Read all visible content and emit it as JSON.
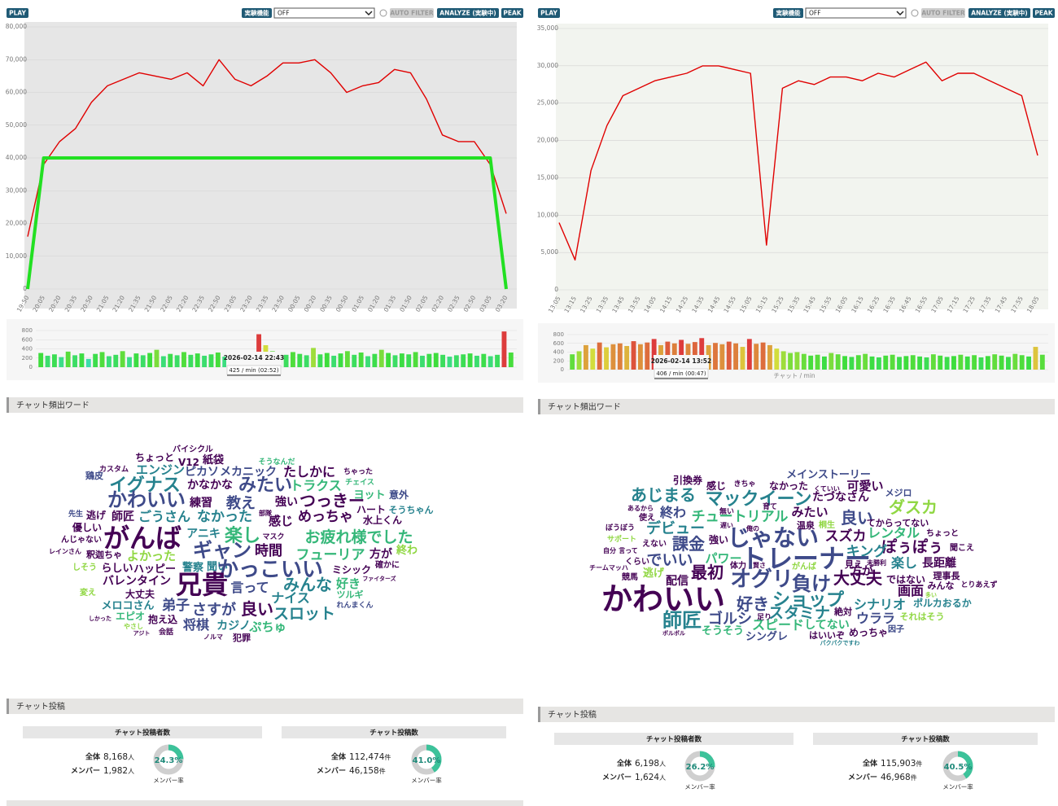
{
  "panels": [
    {
      "controls": {
        "play": "PLAY",
        "feature": "実験機能",
        "select": "OFF",
        "auto_filter": "AUTO FILTER",
        "analyze": "ANALYZE (実験中)",
        "peak": "PEAK"
      },
      "main_chart": {
        "type": "line",
        "categories": [
          "19:50",
          "20:05",
          "20:20",
          "20:35",
          "20:50",
          "21:05",
          "21:20",
          "21:35",
          "21:50",
          "22:05",
          "22:20",
          "22:35",
          "22:50",
          "23:05",
          "23:20",
          "23:35",
          "23:50",
          "00:05",
          "00:20",
          "00:35",
          "00:50",
          "01:05",
          "01:20",
          "01:35",
          "01:50",
          "02:05",
          "02:20",
          "02:35",
          "02:50",
          "03:05",
          "03:20"
        ],
        "series": [
          {
            "color": "#e00000",
            "values": [
              16000,
              38000,
              45000,
              49000,
              57000,
              62000,
              64000,
              66000,
              65000,
              64000,
              66000,
              62000,
              70000,
              64000,
              62000,
              65000,
              69000,
              69000,
              70000,
              66000,
              60000,
              62000,
              63000,
              67000,
              66000,
              58000,
              47000,
              45000,
              45000,
              38000,
              23000
            ]
          },
          {
            "color": "#22e022",
            "values": [
              0,
              40000,
              40000,
              40000,
              40000,
              40000,
              40000,
              40000,
              40000,
              40000,
              40000,
              40000,
              40000,
              40000,
              40000,
              40000,
              40000,
              40000,
              40000,
              40000,
              40000,
              40000,
              40000,
              40000,
              40000,
              40000,
              40000,
              40000,
              40000,
              40000,
              0
            ]
          }
        ],
        "ylim": [
          0,
          80000
        ],
        "yticks": [
          0,
          {
            "value": 10000,
            "label": "10,000"
          },
          {
            "value": 20000,
            "label": "20,000"
          },
          {
            "value": 30000,
            "label": "30,000"
          },
          {
            "value": 40000,
            "label": "40,000"
          },
          {
            "value": 50000,
            "label": "50,000"
          },
          {
            "value": 60000,
            "label": "60,000"
          },
          {
            "value": 70000,
            "label": "70,000"
          },
          {
            "value": 80000,
            "label": "80,000"
          }
        ],
        "grid": true
      },
      "bar_chart": {
        "type": "bar",
        "values": [
          310,
          250,
          280,
          220,
          340,
          260,
          300,
          180,
          290,
          330,
          240,
          270,
          350,
          220,
          300,
          260,
          310,
          380,
          240,
          290,
          260,
          330,
          270,
          300,
          250,
          280,
          320,
          230,
          290,
          260,
          310,
          280,
          720,
          480,
          350,
          300,
          270,
          330,
          290,
          260,
          420,
          280,
          310,
          250,
          300,
          350,
          270,
          320,
          240,
          290,
          380,
          310,
          260,
          300,
          280,
          330,
          250,
          290,
          310,
          270,
          230,
          260,
          280,
          300,
          250,
          290,
          240,
          270,
          780,
          320
        ],
        "ylim": [
          0,
          800
        ],
        "yticks": [
          0,
          200,
          400,
          600,
          800
        ],
        "x_label": "チャット / min",
        "tooltip": {
          "time": "2026-02-14 22:43",
          "rate": "425 / min (02:52)"
        }
      },
      "word_cloud": {
        "title": "チャット頻出ワード",
        "words": [
          "バイシクル",
          "ちょっと",
          "V12",
          "紙袋",
          "カスタム",
          "エンジン",
          "ピカソ",
          "メカニック",
          "そうなんだ",
          "ちゃった",
          "イグナス",
          "かなかな",
          "みたい",
          "たしかに",
          "トラクス",
          "チェイス",
          "鶏皮",
          "かわいい",
          "ヨット",
          "意外",
          "練習",
          "教え",
          "強い",
          "つっきー",
          "先生",
          "逃げ",
          "師匠",
          "ごうさん",
          "なかった",
          "ハート",
          "そうちゃん",
          "部隊",
          "感じ",
          "めっちゃ",
          "水上くん",
          "優しい",
          "アニキ",
          "がんば",
          "楽し",
          "マスク",
          "お疲れ様でした",
          "んじゃない",
          "レインさん",
          "ギャン",
          "時間",
          "よかった",
          "フューリア",
          "方が",
          "終わ",
          "釈迦ちゃ",
          "らしい",
          "ハッピー",
          "聞い",
          "かっこいい",
          "ミシック",
          "確かに",
          "しそう",
          "警察",
          "バレンタイン",
          "兄貴",
          "言って",
          "みんな",
          "好き",
          "ファイターズ",
          "変え",
          "大丈夫",
          "ナイス",
          "ツルギ",
          "メロコさん",
          "弟子",
          "さすが",
          "良い",
          "スロット",
          "れんまくん",
          "エピオ",
          "抱え込",
          "将棋",
          "カジノ",
          "ぷちゅ",
          "しかった",
          "やさし",
          "会話",
          "アジト",
          "ノルマ",
          "犯罪"
        ]
      },
      "posts": {
        "title": "チャット投稿",
        "boxes": [
          {
            "title": "チャット投稿者数",
            "total_label": "全体",
            "total": "8,168",
            "total_unit": "人",
            "member_label": "メンバー",
            "member": "1,982",
            "member_unit": "人",
            "rate": {
              "value": 24.3,
              "label": "24.3%"
            },
            "rate_caption": "メンバー率"
          },
          {
            "title": "チャット投稿数",
            "total_label": "全体",
            "total": "112,474",
            "total_unit": "件",
            "member_label": "メンバー",
            "member": "46,158",
            "member_unit": "件",
            "rate": {
              "value": 41.0,
              "label": "41.0%"
            },
            "rate_caption": "メンバー率"
          }
        ]
      }
    },
    {
      "controls": {
        "play": "PLAY",
        "feature": "実験機能",
        "select": "OFF",
        "auto_filter": "AUTO FILTER",
        "analyze": "ANALYZE (実験中)",
        "peak": "PEAK"
      },
      "main_chart": {
        "type": "line",
        "categories": [
          "13:05",
          "13:15",
          "13:25",
          "13:35",
          "13:45",
          "13:55",
          "14:05",
          "14:15",
          "14:25",
          "14:35",
          "14:45",
          "14:55",
          "15:05",
          "15:15",
          "15:25",
          "15:35",
          "15:45",
          "15:55",
          "16:05",
          "16:15",
          "16:25",
          "16:35",
          "16:45",
          "16:55",
          "17:05",
          "17:15",
          "17:25",
          "17:35",
          "17:45",
          "17:55",
          "18:05"
        ],
        "series": [
          {
            "color": "#e00000",
            "values": [
              9000,
              4000,
              16000,
              22000,
              26000,
              27000,
              28000,
              28500,
              29000,
              30000,
              30000,
              29500,
              29000,
              6000,
              27000,
              28000,
              27500,
              28500,
              28500,
              28000,
              29000,
              28500,
              29500,
              30500,
              28000,
              29000,
              29000,
              28000,
              27000,
              26000,
              18000
            ]
          }
        ],
        "ylim": [
          0,
          35000
        ],
        "yticks": [
          0,
          {
            "value": 5000,
            "label": "5,000"
          },
          {
            "value": 10000,
            "label": "10,000"
          },
          {
            "value": 15000,
            "label": "15,000"
          },
          {
            "value": 20000,
            "label": "20,000"
          },
          {
            "value": 25000,
            "label": "25,000"
          },
          {
            "value": 30000,
            "label": "30,000"
          },
          {
            "value": 35000,
            "label": "35,000"
          }
        ],
        "grid": true
      },
      "bar_chart": {
        "type": "bar",
        "values": [
          350,
          420,
          560,
          480,
          620,
          510,
          580,
          600,
          540,
          650,
          580,
          620,
          700,
          560,
          640,
          600,
          680,
          590,
          630,
          720,
          560,
          610,
          580,
          640,
          600,
          520,
          700,
          590,
          620,
          560,
          480,
          420,
          380,
          400,
          360,
          320,
          340,
          300,
          380,
          350,
          310,
          290,
          330,
          360,
          300,
          280,
          320,
          340,
          290,
          310,
          330,
          300,
          280,
          350,
          320,
          290,
          310,
          340,
          300,
          330,
          280,
          310,
          350,
          320,
          290,
          360,
          330,
          300,
          520,
          340
        ],
        "ylim": [
          0,
          800
        ],
        "yticks": [
          0,
          200,
          400,
          600,
          800
        ],
        "x_label": "チャット / min",
        "tooltip": {
          "time": "2026-02-14 13:52",
          "rate": "406 / min (00:47)"
        }
      },
      "word_cloud": {
        "title": "チャット頻出ワード",
        "words": [
          "メインストーリー",
          "引換券",
          "感じ",
          "きちゃ",
          "なかった",
          "くていい",
          "可愛い",
          "たづなさん",
          "メジロ",
          "あじまる",
          "マックイーン",
          "ダスカ",
          "育て",
          "無い",
          "終わ",
          "チュートリアル",
          "みたい",
          "良い",
          "ぼうぼう",
          "あるから",
          "使え",
          "遅い",
          "俺の",
          "温泉",
          "桐生",
          "てからってない",
          "レンタル",
          "ちょっと",
          "デビュー",
          "じゃない",
          "スズカ",
          "ぽぅぽぅ",
          "サポート",
          "強い",
          "課金",
          "えない",
          "聞こえ",
          "キング",
          "自分",
          "言って",
          "でいい",
          "パワー",
          "トレーナー",
          "くらい",
          "方が",
          "がんば",
          "チームマッハ",
          "体力",
          "賢さ",
          "楽し",
          "長距離",
          "見え",
          "未勝利",
          "逃げ",
          "最初",
          "オグリ",
          "負け",
          "大丈夫",
          "理事長",
          "競馬",
          "ではない",
          "配信",
          "画面",
          "みんな",
          "とりあえず",
          "かわいい",
          "好き",
          "ショップ",
          "シナリオ",
          "ポルカおるか",
          "絶対",
          "多い",
          "師匠",
          "ゴルシ",
          "スタミナ",
          "ウララ",
          "それはそう",
          "足り",
          "スピード",
          "してない",
          "因子",
          "そうそう",
          "はいいぞ",
          "めっちゃ",
          "シングレ",
          "ボルボル",
          "パクパクですわ"
        ]
      },
      "posts": {
        "title": "チャット投稿",
        "boxes": [
          {
            "title": "チャット投稿者数",
            "total_label": "全体",
            "total": "6,198",
            "total_unit": "人",
            "member_label": "メンバー",
            "member": "1,624",
            "member_unit": "人",
            "rate": {
              "value": 26.2,
              "label": "26.2%"
            },
            "rate_caption": "メンバー率"
          },
          {
            "title": "チャット投稿数",
            "total_label": "全体",
            "total": "115,903",
            "total_unit": "件",
            "member_label": "メンバー",
            "member": "46,968",
            "member_unit": "件",
            "rate": {
              "value": 40.5,
              "label": "40.5%"
            },
            "rate_caption": "メンバー率"
          }
        ]
      }
    }
  ]
}
